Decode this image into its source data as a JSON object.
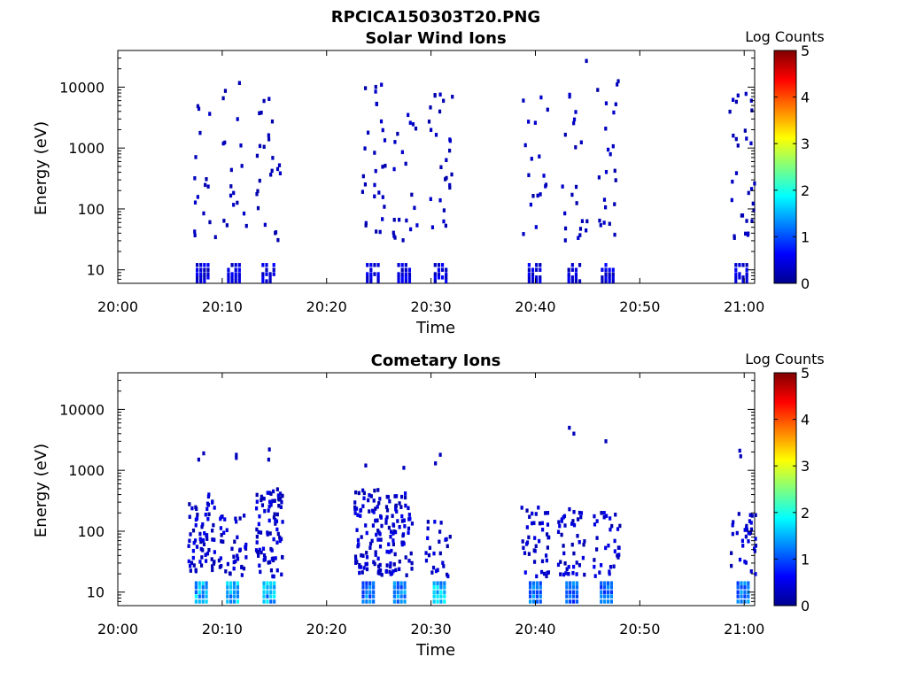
{
  "figure": {
    "title": "RPCICA150303T20.PNG"
  },
  "chart_data": [
    {
      "type": "heatmap",
      "title": "Solar Wind Ions",
      "xlabel": "Time",
      "ylabel": "Energy (eV)",
      "x_ticks": [
        "20:00",
        "20:10",
        "20:20",
        "20:30",
        "20:40",
        "20:50",
        "21:00"
      ],
      "x_range_minutes": [
        0,
        61
      ],
      "y_scale": "log",
      "y_ticks": [
        "10",
        "100",
        "1000",
        "10000"
      ],
      "y_range": [
        6,
        40000
      ],
      "colorbar": {
        "label": "Log Counts",
        "range": [
          0,
          5
        ],
        "ticks": [
          "0",
          "1",
          "2",
          "3",
          "4",
          "5"
        ],
        "colormap": "jet"
      },
      "bursts": [
        {
          "t": 8.2,
          "low": [
            [
              8,
              1
            ],
            [
              12,
              0.8
            ]
          ],
          "scatter_max": 5000,
          "scatter_count": 16
        },
        {
          "t": 11.2,
          "low": [
            [
              8,
              1
            ],
            [
              12,
              0.8
            ]
          ],
          "scatter_max": 15000,
          "scatter_count": 18
        },
        {
          "t": 14.5,
          "low": [
            [
              8,
              1
            ],
            [
              12,
              0.8
            ]
          ],
          "scatter_max": 7000,
          "scatter_count": 24
        },
        {
          "t": 24.5,
          "low": [
            [
              9,
              1
            ],
            [
              12,
              0.8
            ]
          ],
          "scatter_max": 12000,
          "scatter_count": 28
        },
        {
          "t": 27.5,
          "low": [
            [
              8,
              1
            ],
            [
              12,
              0.8
            ]
          ],
          "scatter_max": 5000,
          "scatter_count": 20
        },
        {
          "t": 31.0,
          "low": [
            [
              9,
              1
            ],
            [
              13,
              0.9
            ]
          ],
          "scatter_max": 8000,
          "scatter_count": 26
        },
        {
          "t": 40.0,
          "low": [
            [
              9,
              1.2
            ],
            [
              12,
              1
            ]
          ],
          "scatter_max": 8000,
          "scatter_count": 18
        },
        {
          "t": 43.8,
          "low": [
            [
              9,
              1
            ],
            [
              12,
              1
            ]
          ],
          "scatter_max": 40000,
          "scatter_count": 22
        },
        {
          "t": 47.0,
          "low": [
            [
              8,
              0.8
            ],
            [
              12,
              0.6
            ]
          ],
          "scatter_max": 15000,
          "scatter_count": 22
        },
        {
          "t": 59.8,
          "low": [
            [
              8,
              1
            ],
            [
              12,
              1
            ]
          ],
          "scatter_max": 8000,
          "scatter_count": 30
        }
      ]
    },
    {
      "type": "heatmap",
      "title": "Cometary Ions",
      "xlabel": "Time",
      "ylabel": "Energy (eV)",
      "x_ticks": [
        "20:00",
        "20:10",
        "20:20",
        "20:30",
        "20:40",
        "20:50",
        "21:00"
      ],
      "x_range_minutes": [
        0,
        61
      ],
      "y_scale": "log",
      "y_ticks": [
        "10",
        "100",
        "1000",
        "10000"
      ],
      "y_range": [
        6,
        40000
      ],
      "colorbar": {
        "label": "Log Counts",
        "range": [
          0,
          5
        ],
        "ticks": [
          "0",
          "1",
          "2",
          "3",
          "4",
          "5"
        ],
        "colormap": "jet"
      },
      "bursts": [
        {
          "t": 8.0,
          "peak_log_counts": 1.9,
          "cluster_max": 400,
          "sparse": [
            1500,
            1900
          ]
        },
        {
          "t": 11.0,
          "peak_log_counts": 1.9,
          "cluster_max": 250,
          "sparse": [
            1600,
            1800
          ]
        },
        {
          "t": 14.5,
          "peak_log_counts": 1.9,
          "cluster_max": 500,
          "sparse": [
            1500,
            2200
          ]
        },
        {
          "t": 24.0,
          "peak_log_counts": 1.5,
          "cluster_max": 500,
          "sparse": [
            1200
          ]
        },
        {
          "t": 27.0,
          "peak_log_counts": 1.6,
          "cluster_max": 450,
          "sparse": [
            1100
          ]
        },
        {
          "t": 30.8,
          "peak_log_counts": 1.9,
          "cluster_max": 150,
          "sparse": [
            1300,
            1800
          ]
        },
        {
          "t": 40.0,
          "peak_log_counts": 1.6,
          "cluster_max": 250,
          "sparse": []
        },
        {
          "t": 43.5,
          "peak_log_counts": 1.4,
          "cluster_max": 250,
          "sparse": [
            4000,
            5000
          ]
        },
        {
          "t": 46.8,
          "peak_log_counts": 1.4,
          "cluster_max": 200,
          "sparse": [
            3000
          ]
        },
        {
          "t": 59.9,
          "peak_log_counts": 1.5,
          "cluster_max": 200,
          "sparse": [
            1700,
            2100
          ]
        }
      ]
    }
  ]
}
